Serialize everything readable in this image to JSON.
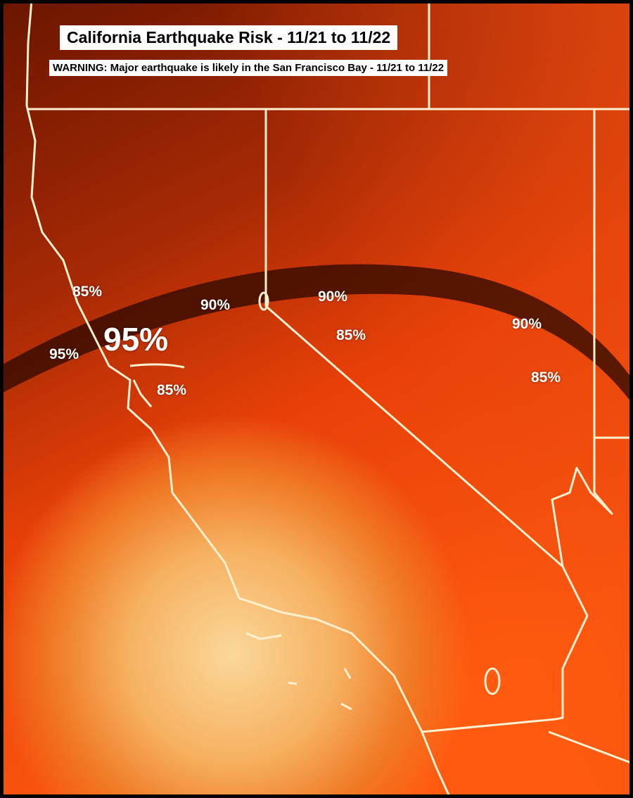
{
  "title": "California Earthquake Risk - 11/21 to 11/22",
  "warning": "WARNING: Major earthquake is likely in the San Francisco Bay - 11/21 to 11/22",
  "risk_labels": [
    {
      "text": "85%",
      "region": "north-coast"
    },
    {
      "text": "95%",
      "region": "san-francisco-bay",
      "emphasis": true
    },
    {
      "text": "95%",
      "region": "coast-west-of-bay"
    },
    {
      "text": "90%",
      "region": "sacramento"
    },
    {
      "text": "85%",
      "region": "east-bay"
    },
    {
      "text": "90%",
      "region": "lake-tahoe-nevada"
    },
    {
      "text": "85%",
      "region": "western-nevada"
    },
    {
      "text": "90%",
      "region": "central-nevada"
    },
    {
      "text": "85%",
      "region": "eastern-nevada"
    }
  ],
  "colors": {
    "dark": "#5a1000",
    "mid": "#e03a05",
    "hot": "#f8c070",
    "lines": "#fff0d0"
  }
}
